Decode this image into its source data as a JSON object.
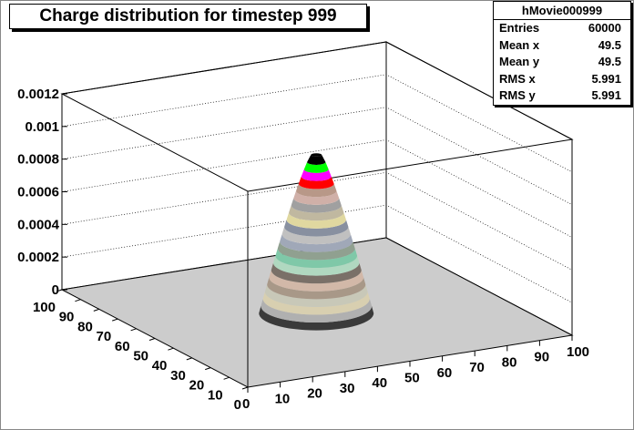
{
  "title": "Charge distribution for timestep 999",
  "stats": {
    "name": "hMovie000999",
    "rows": [
      {
        "label": "Entries",
        "value": "60000"
      },
      {
        "label": "Mean x",
        "value": "49.5"
      },
      {
        "label": "Mean y",
        "value": "49.5"
      },
      {
        "label": "RMS x",
        "value": "5.991"
      },
      {
        "label": "RMS y",
        "value": "5.991"
      }
    ]
  },
  "chart_data": {
    "type": "lego",
    "title": "Charge distribution for timestep 999",
    "x_ticks": [
      "0",
      "10",
      "20",
      "30",
      "40",
      "50",
      "60",
      "70",
      "80",
      "90",
      "100"
    ],
    "y_ticks": [
      "0",
      "10",
      "20",
      "30",
      "40",
      "50",
      "60",
      "70",
      "80",
      "90",
      "100"
    ],
    "z_ticks": [
      "0",
      "0.0002",
      "0.0004",
      "0.0006",
      "0.0008",
      "0.001",
      "0.0012"
    ],
    "xlim": [
      0,
      100
    ],
    "ylim": [
      0,
      100
    ],
    "zlim": [
      0,
      0.0012
    ],
    "peak_z": 0.00097,
    "grid": true,
    "palette": [
      "#3a3a3a",
      "#b0b0b0",
      "#d8cfb0",
      "#c8c8b8",
      "#a89888",
      "#d2b8a8",
      "#7a7068",
      "#b0d8c0",
      "#7fc8a8",
      "#90a090",
      "#a0a8b8",
      "#c0c0c0",
      "#8890a0",
      "#e0d8a0",
      "#c0b8a0",
      "#a0a0a0",
      "#d0b0a8",
      "#b89888",
      "#ff0000",
      "#ff00ff",
      "#00ff00",
      "#000000"
    ]
  }
}
